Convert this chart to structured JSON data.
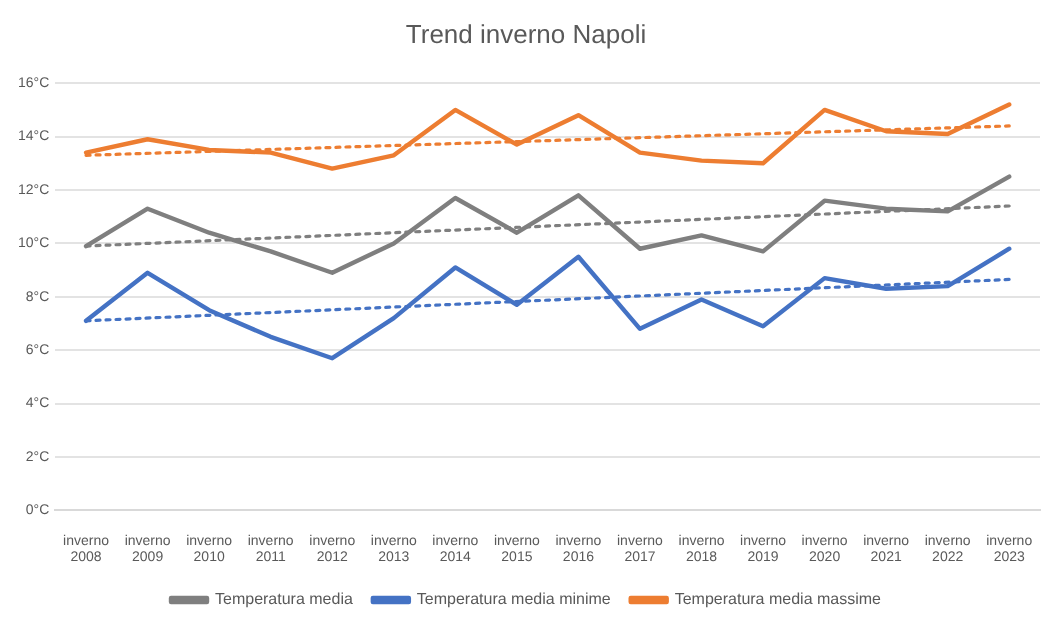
{
  "chart_data": {
    "type": "line",
    "title": "Trend inverno Napoli",
    "categories": [
      "inverno 2008",
      "inverno 2009",
      "inverno 2010",
      "inverno 2011",
      "inverno 2012",
      "inverno 2013",
      "inverno 2014",
      "inverno 2015",
      "inverno 2016",
      "inverno 2017",
      "inverno 2018",
      "inverno 2019",
      "inverno 2020",
      "inverno 2021",
      "inverno 2022",
      "inverno 2023"
    ],
    "series": [
      {
        "name": "Temperatura media",
        "color": "#7f7f7f",
        "values": [
          9.9,
          11.3,
          10.4,
          9.7,
          8.9,
          10.0,
          11.7,
          10.4,
          11.8,
          9.8,
          10.3,
          9.7,
          11.6,
          11.3,
          11.2,
          12.5
        ]
      },
      {
        "name": "Temperatura media minime",
        "color": "#4472c4",
        "values": [
          7.1,
          8.9,
          7.5,
          6.5,
          5.7,
          7.2,
          9.1,
          7.7,
          9.5,
          6.8,
          7.9,
          6.9,
          8.7,
          8.3,
          8.4,
          9.8
        ]
      },
      {
        "name": "Temperatura media massime",
        "color": "#ed7d31",
        "values": [
          13.4,
          13.9,
          13.5,
          13.4,
          12.8,
          13.3,
          15.0,
          13.7,
          14.8,
          13.4,
          13.1,
          13.0,
          15.0,
          14.2,
          14.1,
          15.2
        ]
      },
      {
        "type": "line",
        "line_style": "dotted",
        "color": "#7f7f7f",
        "x": [
          "inverno 2008",
          "inverno 2023"
        ],
        "values": [
          9.9,
          11.4
        ]
      },
      {
        "type": "line",
        "line_style": "dotted",
        "color": "#4472c4",
        "x": [
          "inverno 2008",
          "inverno 2023"
        ],
        "values": [
          7.1,
          8.65
        ]
      },
      {
        "type": "line",
        "line_style": "dotted",
        "color": "#ed7d31",
        "x": [
          "inverno 2008",
          "inverno 2023"
        ],
        "values": [
          13.3,
          14.4
        ]
      }
    ],
    "ylim": [
      0,
      16
    ],
    "yticks": [
      {
        "value": 0,
        "label": "0°C"
      },
      {
        "value": 2,
        "label": "2°C"
      },
      {
        "value": 4,
        "label": "4°C"
      },
      {
        "value": 6,
        "label": "6°C"
      },
      {
        "value": 8,
        "label": "8°C"
      },
      {
        "value": 10,
        "label": "10°C"
      },
      {
        "value": 12,
        "label": "12°C"
      },
      {
        "value": 14,
        "label": "14°C"
      },
      {
        "value": 16,
        "label": "16°C"
      }
    ],
    "grid": "y",
    "legend": "bottom",
    "marker": "none",
    "line_style": "solid"
  }
}
